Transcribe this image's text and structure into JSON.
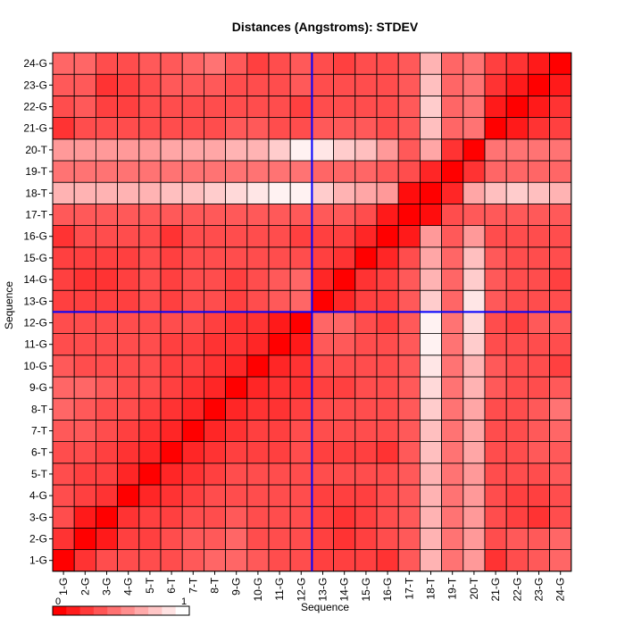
{
  "chart_data": {
    "type": "heatmap",
    "title": "Distances (Angstroms):  STDEV",
    "xlabel": "Sequence",
    "ylabel": "Sequence",
    "x_categories": [
      "1-G",
      "2-G",
      "3-G",
      "4-G",
      "5-T",
      "6-T",
      "7-T",
      "8-T",
      "9-G",
      "10-G",
      "11-G",
      "12-G",
      "13-G",
      "14-G",
      "15-G",
      "16-G",
      "17-T",
      "18-T",
      "19-T",
      "20-T",
      "21-G",
      "22-G",
      "23-G",
      "24-G"
    ],
    "y_categories": [
      "1-G",
      "2-G",
      "3-G",
      "4-G",
      "5-T",
      "6-T",
      "7-T",
      "8-T",
      "9-G",
      "10-G",
      "11-G",
      "12-G",
      "13-G",
      "14-G",
      "15-G",
      "16-G",
      "17-T",
      "18-T",
      "19-T",
      "20-T",
      "21-G",
      "22-G",
      "23-G",
      "24-G"
    ],
    "color_scale": {
      "min": 0,
      "max": 1,
      "low_color": "#ff0000",
      "high_color": "#ffffff",
      "min_label": "0",
      "max_label": "1"
    },
    "divider_lines": {
      "after_index": 12,
      "color": "#0000ff"
    },
    "values": [
      [
        0.0,
        0.2,
        0.3,
        0.3,
        0.3,
        0.3,
        0.35,
        0.4,
        0.4,
        0.35,
        0.3,
        0.3,
        0.25,
        0.25,
        0.25,
        0.2,
        0.35,
        0.7,
        0.45,
        0.6,
        0.2,
        0.3,
        0.35,
        0.4
      ],
      [
        0.2,
        0.0,
        0.1,
        0.25,
        0.25,
        0.3,
        0.35,
        0.35,
        0.4,
        0.3,
        0.3,
        0.3,
        0.25,
        0.2,
        0.25,
        0.3,
        0.35,
        0.7,
        0.45,
        0.6,
        0.3,
        0.35,
        0.35,
        0.4
      ],
      [
        0.3,
        0.1,
        0.0,
        0.2,
        0.25,
        0.25,
        0.3,
        0.3,
        0.35,
        0.3,
        0.3,
        0.3,
        0.25,
        0.2,
        0.25,
        0.3,
        0.35,
        0.7,
        0.45,
        0.6,
        0.3,
        0.25,
        0.2,
        0.3
      ],
      [
        0.3,
        0.25,
        0.2,
        0.0,
        0.15,
        0.2,
        0.25,
        0.3,
        0.3,
        0.3,
        0.3,
        0.3,
        0.25,
        0.25,
        0.25,
        0.3,
        0.35,
        0.7,
        0.45,
        0.6,
        0.3,
        0.25,
        0.25,
        0.3
      ],
      [
        0.3,
        0.25,
        0.25,
        0.15,
        0.0,
        0.15,
        0.2,
        0.25,
        0.3,
        0.3,
        0.3,
        0.3,
        0.3,
        0.3,
        0.3,
        0.3,
        0.35,
        0.7,
        0.45,
        0.6,
        0.3,
        0.3,
        0.3,
        0.35
      ],
      [
        0.3,
        0.3,
        0.25,
        0.2,
        0.15,
        0.0,
        0.15,
        0.2,
        0.25,
        0.25,
        0.25,
        0.3,
        0.25,
        0.25,
        0.25,
        0.2,
        0.35,
        0.75,
        0.45,
        0.65,
        0.3,
        0.3,
        0.35,
        0.35
      ],
      [
        0.35,
        0.35,
        0.3,
        0.25,
        0.2,
        0.15,
        0.0,
        0.15,
        0.2,
        0.25,
        0.25,
        0.3,
        0.3,
        0.3,
        0.3,
        0.3,
        0.35,
        0.75,
        0.45,
        0.65,
        0.3,
        0.3,
        0.35,
        0.4
      ],
      [
        0.4,
        0.35,
        0.3,
        0.3,
        0.25,
        0.2,
        0.15,
        0.0,
        0.15,
        0.2,
        0.2,
        0.25,
        0.3,
        0.3,
        0.3,
        0.3,
        0.35,
        0.8,
        0.45,
        0.65,
        0.3,
        0.3,
        0.35,
        0.45
      ],
      [
        0.4,
        0.4,
        0.35,
        0.3,
        0.3,
        0.25,
        0.2,
        0.15,
        0.0,
        0.15,
        0.2,
        0.2,
        0.25,
        0.25,
        0.3,
        0.3,
        0.35,
        0.85,
        0.45,
        0.7,
        0.35,
        0.3,
        0.3,
        0.35
      ],
      [
        0.35,
        0.3,
        0.3,
        0.3,
        0.3,
        0.25,
        0.25,
        0.2,
        0.15,
        0.0,
        0.15,
        0.2,
        0.3,
        0.3,
        0.3,
        0.3,
        0.35,
        0.9,
        0.45,
        0.7,
        0.35,
        0.3,
        0.3,
        0.25
      ],
      [
        0.3,
        0.3,
        0.3,
        0.3,
        0.3,
        0.25,
        0.25,
        0.2,
        0.2,
        0.15,
        0.0,
        0.1,
        0.35,
        0.35,
        0.3,
        0.3,
        0.35,
        0.95,
        0.45,
        0.8,
        0.3,
        0.3,
        0.3,
        0.3
      ],
      [
        0.3,
        0.3,
        0.3,
        0.3,
        0.3,
        0.3,
        0.3,
        0.25,
        0.2,
        0.2,
        0.1,
        0.0,
        0.4,
        0.4,
        0.3,
        0.25,
        0.35,
        0.95,
        0.45,
        0.85,
        0.3,
        0.25,
        0.35,
        0.35
      ],
      [
        0.25,
        0.25,
        0.25,
        0.25,
        0.3,
        0.25,
        0.3,
        0.3,
        0.25,
        0.3,
        0.35,
        0.4,
        0.0,
        0.15,
        0.25,
        0.25,
        0.35,
        0.8,
        0.4,
        0.9,
        0.35,
        0.3,
        0.3,
        0.3
      ],
      [
        0.25,
        0.2,
        0.2,
        0.25,
        0.3,
        0.25,
        0.3,
        0.3,
        0.25,
        0.3,
        0.35,
        0.4,
        0.15,
        0.0,
        0.2,
        0.25,
        0.35,
        0.7,
        0.4,
        0.8,
        0.35,
        0.3,
        0.3,
        0.25
      ],
      [
        0.25,
        0.25,
        0.25,
        0.25,
        0.3,
        0.25,
        0.3,
        0.3,
        0.3,
        0.3,
        0.3,
        0.3,
        0.25,
        0.2,
        0.0,
        0.15,
        0.3,
        0.65,
        0.4,
        0.75,
        0.35,
        0.3,
        0.3,
        0.3
      ],
      [
        0.2,
        0.3,
        0.3,
        0.3,
        0.3,
        0.2,
        0.3,
        0.3,
        0.3,
        0.3,
        0.3,
        0.25,
        0.25,
        0.25,
        0.15,
        0.0,
        0.1,
        0.6,
        0.35,
        0.6,
        0.3,
        0.3,
        0.3,
        0.3
      ],
      [
        0.35,
        0.35,
        0.35,
        0.35,
        0.35,
        0.35,
        0.35,
        0.35,
        0.35,
        0.35,
        0.35,
        0.35,
        0.35,
        0.35,
        0.3,
        0.1,
        0.0,
        0.05,
        0.3,
        0.35,
        0.35,
        0.35,
        0.35,
        0.35
      ],
      [
        0.7,
        0.7,
        0.7,
        0.7,
        0.7,
        0.75,
        0.75,
        0.8,
        0.85,
        0.9,
        0.95,
        0.95,
        0.8,
        0.7,
        0.65,
        0.6,
        0.05,
        0.0,
        0.15,
        0.65,
        0.75,
        0.8,
        0.75,
        0.7
      ],
      [
        0.45,
        0.45,
        0.45,
        0.45,
        0.45,
        0.45,
        0.45,
        0.45,
        0.45,
        0.45,
        0.45,
        0.45,
        0.4,
        0.4,
        0.4,
        0.35,
        0.3,
        0.15,
        0.0,
        0.2,
        0.4,
        0.4,
        0.4,
        0.4
      ],
      [
        0.6,
        0.6,
        0.6,
        0.6,
        0.6,
        0.65,
        0.65,
        0.65,
        0.7,
        0.7,
        0.8,
        0.95,
        0.9,
        0.8,
        0.75,
        0.6,
        0.35,
        0.65,
        0.2,
        0.0,
        0.45,
        0.45,
        0.45,
        0.45
      ],
      [
        0.2,
        0.3,
        0.3,
        0.3,
        0.3,
        0.3,
        0.3,
        0.3,
        0.35,
        0.35,
        0.3,
        0.3,
        0.35,
        0.35,
        0.35,
        0.3,
        0.35,
        0.75,
        0.4,
        0.45,
        0.0,
        0.1,
        0.2,
        0.25
      ],
      [
        0.3,
        0.35,
        0.25,
        0.25,
        0.3,
        0.3,
        0.3,
        0.3,
        0.3,
        0.3,
        0.3,
        0.25,
        0.3,
        0.3,
        0.3,
        0.3,
        0.35,
        0.8,
        0.4,
        0.45,
        0.1,
        0.0,
        0.1,
        0.2
      ],
      [
        0.35,
        0.35,
        0.2,
        0.25,
        0.3,
        0.35,
        0.35,
        0.35,
        0.3,
        0.3,
        0.3,
        0.35,
        0.3,
        0.3,
        0.3,
        0.3,
        0.35,
        0.75,
        0.4,
        0.45,
        0.2,
        0.1,
        0.0,
        0.1
      ],
      [
        0.4,
        0.4,
        0.3,
        0.3,
        0.35,
        0.35,
        0.4,
        0.45,
        0.35,
        0.25,
        0.3,
        0.35,
        0.3,
        0.25,
        0.3,
        0.3,
        0.35,
        0.7,
        0.4,
        0.45,
        0.25,
        0.2,
        0.1,
        0.0
      ]
    ]
  }
}
